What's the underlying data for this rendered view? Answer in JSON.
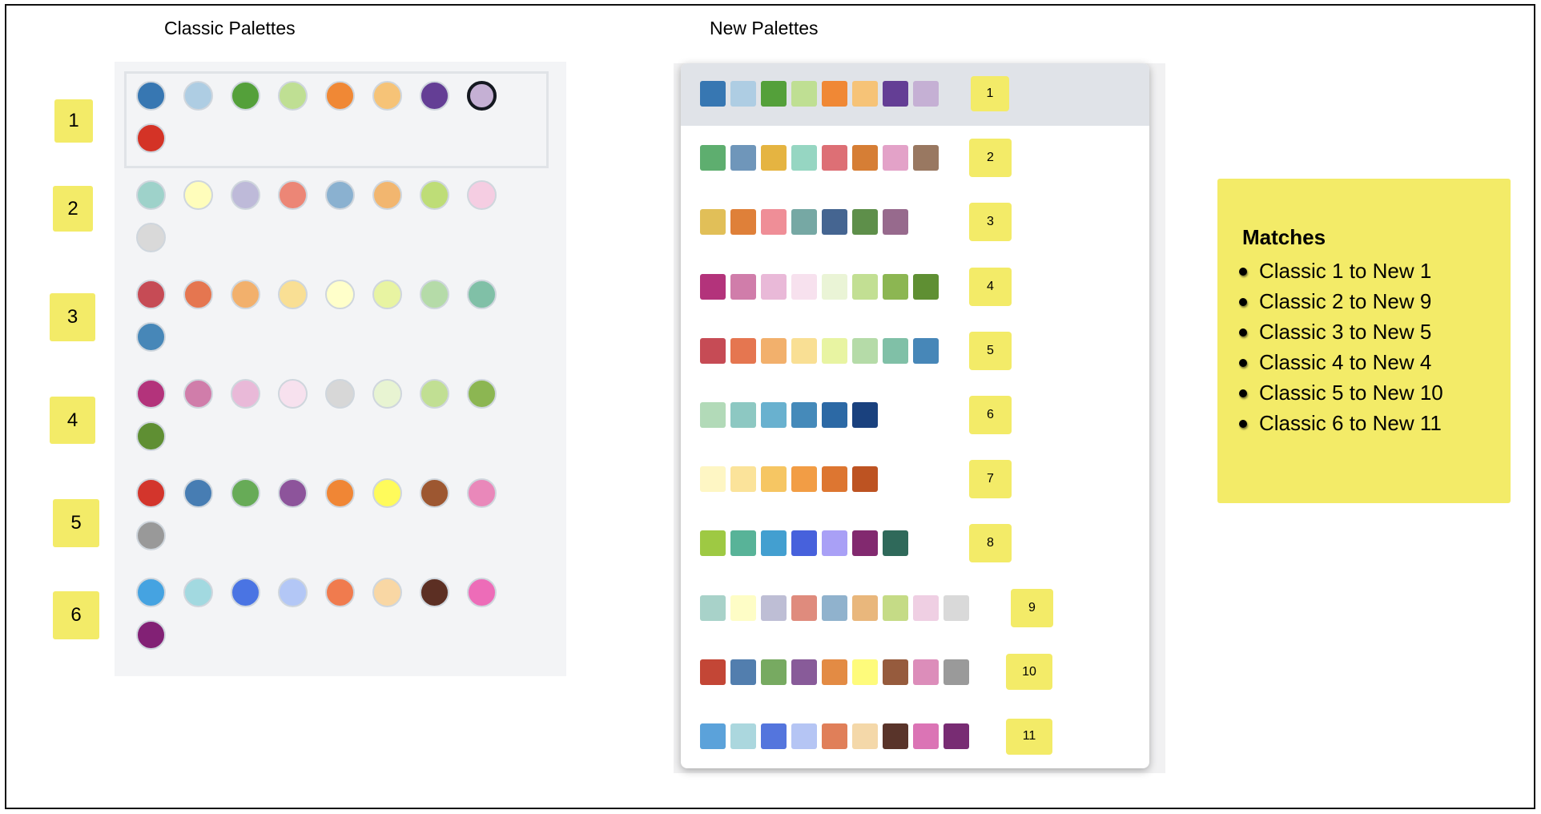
{
  "classic": {
    "title": "Classic Palettes",
    "selected_index": 0,
    "selected_swatch": 7,
    "palettes": [
      {
        "label": "1",
        "colors": [
          "#3777b2",
          "#aecde3",
          "#54a03a",
          "#bfdf93",
          "#f08835",
          "#f6c377",
          "#643e95",
          "#c5b0d4",
          "#d43326"
        ]
      },
      {
        "label": "2",
        "colors": [
          "#9ed2ca",
          "#fffdbb",
          "#bebad9",
          "#ec8676",
          "#8ab1d0",
          "#f2b66f",
          "#bedd77",
          "#f5cde2",
          "#d9d9d9"
        ]
      },
      {
        "label": "3",
        "colors": [
          "#c64b55",
          "#e57650",
          "#f2b06c",
          "#f9df94",
          "#ffffca",
          "#e8f4a2",
          "#b5dba8",
          "#80c0a7",
          "#4787b8"
        ]
      },
      {
        "label": "4",
        "colors": [
          "#b3337b",
          "#d07daa",
          "#e9b9d8",
          "#f7e1ee",
          "#d7d7d7",
          "#e8f4d2",
          "#c1df93",
          "#8cb652",
          "#5f8f33"
        ]
      },
      {
        "label": "5",
        "colors": [
          "#d3352c",
          "#477db3",
          "#67ab57",
          "#8d549b",
          "#f08635",
          "#fffb5b",
          "#9d5731",
          "#e988ba",
          "#999999"
        ]
      },
      {
        "label": "6",
        "colors": [
          "#45a3e1",
          "#a2d9e0",
          "#4a74e3",
          "#b3c7f6",
          "#f07b4e",
          "#f9d7a4",
          "#5c2f23",
          "#ed6cb8",
          "#822175"
        ]
      }
    ]
  },
  "new": {
    "title": "New Palettes",
    "selected_index": 0,
    "palettes": [
      {
        "label": "1",
        "colors": [
          "#3777b2",
          "#aecde3",
          "#54a03a",
          "#bfdf93",
          "#f08835",
          "#f6c377",
          "#643e95",
          "#c5b0d4"
        ]
      },
      {
        "label": "2",
        "colors": [
          "#5eae6f",
          "#6f96ba",
          "#e5b441",
          "#96d6c2",
          "#dd6f75",
          "#d67e35",
          "#e3a2c8",
          "#997861"
        ]
      },
      {
        "label": "3",
        "colors": [
          "#e1bf58",
          "#df8039",
          "#ef8e97",
          "#76a8a4",
          "#456591",
          "#5e8f4a",
          "#976a8d"
        ]
      },
      {
        "label": "4",
        "colors": [
          "#b3337b",
          "#d07daa",
          "#e9b9d8",
          "#f7e1ee",
          "#eaf4d6",
          "#c2df93",
          "#8cb652",
          "#5f8f33"
        ]
      },
      {
        "label": "5",
        "colors": [
          "#c64b55",
          "#e57650",
          "#f2b06c",
          "#f9df94",
          "#e8f4a2",
          "#b5dba8",
          "#80c0a7",
          "#4787b8"
        ]
      },
      {
        "label": "6",
        "colors": [
          "#b2dab8",
          "#8dc8c2",
          "#69b1cf",
          "#458aba",
          "#2c69a5",
          "#1a417e"
        ]
      },
      {
        "label": "7",
        "colors": [
          "#fef6c4",
          "#fbe39a",
          "#f6c663",
          "#f29d45",
          "#dd7631",
          "#bd5322"
        ]
      },
      {
        "label": "8",
        "colors": [
          "#9ec943",
          "#58b398",
          "#439fd0",
          "#4761dc",
          "#a9a0f6",
          "#82296f",
          "#2f695a"
        ]
      },
      {
        "label": "9",
        "colors": [
          "#a8d2c9",
          "#fefdc6",
          "#bebed5",
          "#df8b7d",
          "#90b2cd",
          "#e9b77c",
          "#c5db86",
          "#efcfe3",
          "#d9d9d9"
        ]
      },
      {
        "label": "10",
        "colors": [
          "#c34636",
          "#527eae",
          "#77aa61",
          "#885b99",
          "#e38b44",
          "#fefb7b",
          "#965b3d",
          "#dc8dba",
          "#9a9a9a"
        ]
      },
      {
        "label": "11",
        "colors": [
          "#5ba2da",
          "#abd7de",
          "#5475dd",
          "#b5c5f4",
          "#e07f59",
          "#f4d8a9",
          "#59342a",
          "#db74b5",
          "#782c73"
        ]
      }
    ]
  },
  "matches": {
    "title": "Matches",
    "items": [
      "Classic 1 to New 1",
      "Classic 2 to New 9",
      "Classic 3 to New 5",
      "Classic 4 to New 4",
      "Classic 5 to New 10",
      "Classic 6 to New 11"
    ]
  }
}
